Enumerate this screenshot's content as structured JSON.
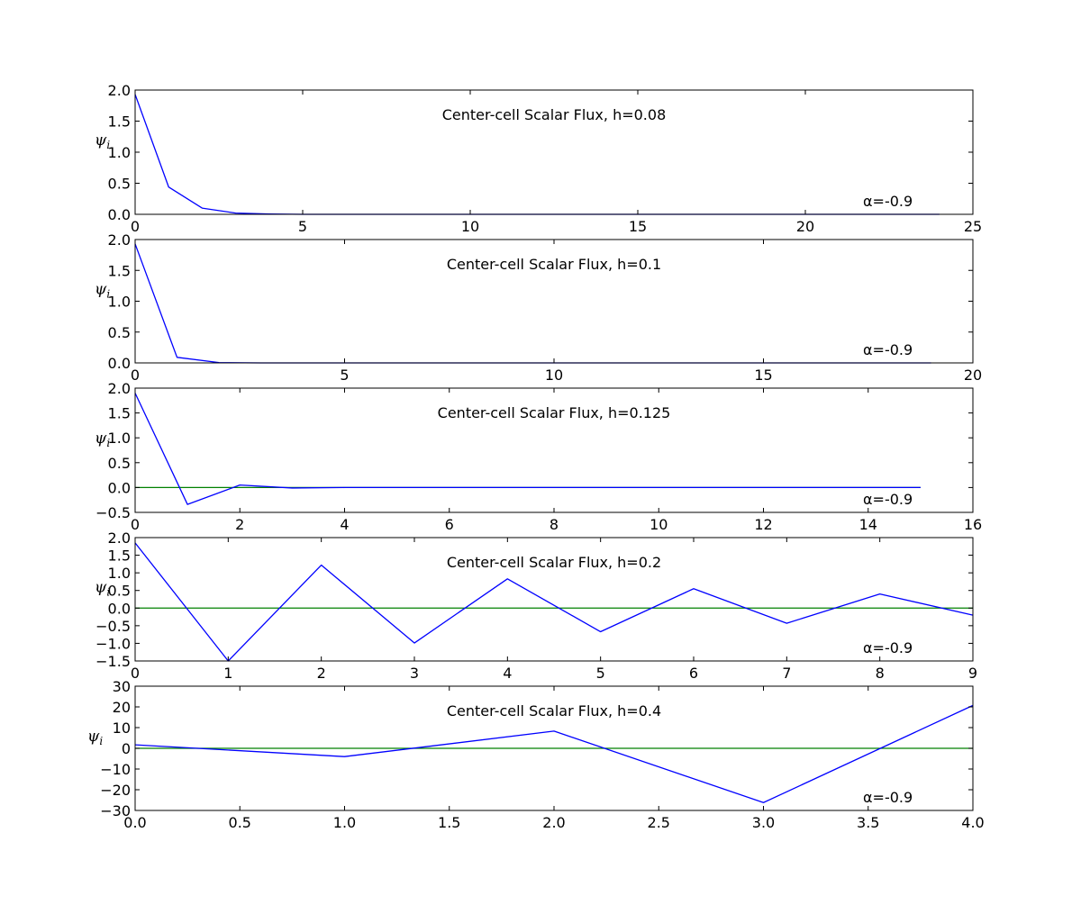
{
  "colors": {
    "series_line": "#0000ff",
    "zero_line": "#008000",
    "axes": "#000000",
    "background": "#ffffff"
  },
  "chart_data": [
    {
      "type": "line",
      "title": "Center-cell Scalar Flux, h=0.08",
      "ylabel": "ψi",
      "annotation": "α=-0.9",
      "xlim": [
        0,
        25
      ],
      "ylim": [
        0,
        2.0
      ],
      "xticks": [
        0,
        5,
        10,
        15,
        20,
        25
      ],
      "xtick_labels": [
        "0",
        "5",
        "10",
        "15",
        "20",
        "25"
      ],
      "yticks": [
        0,
        0.5,
        1.0,
        1.5,
        2.0
      ],
      "ytick_labels": [
        "0.0",
        "0.5",
        "1.0",
        "1.5",
        "2.0"
      ],
      "zero_line": false,
      "series": [
        {
          "x": [
            0,
            1,
            2,
            3,
            4,
            5,
            6,
            7,
            8,
            9,
            10,
            11,
            12,
            13,
            14,
            15,
            16,
            17,
            18,
            19,
            20,
            21,
            22,
            23,
            24
          ],
          "y": [
            1.93,
            0.44,
            0.1,
            0.02,
            0.005,
            0,
            0,
            0,
            0,
            0,
            0,
            0,
            0,
            0,
            0,
            0,
            0,
            0,
            0,
            0,
            0,
            0,
            0,
            0,
            0
          ]
        }
      ]
    },
    {
      "type": "line",
      "title": "Center-cell Scalar Flux, h=0.1",
      "ylabel": "ψi",
      "annotation": "α=-0.9",
      "xlim": [
        0,
        20
      ],
      "ylim": [
        0,
        2.0
      ],
      "xticks": [
        0,
        5,
        10,
        15,
        20
      ],
      "xtick_labels": [
        "0",
        "5",
        "10",
        "15",
        "20"
      ],
      "yticks": [
        0,
        0.5,
        1.0,
        1.5,
        2.0
      ],
      "ytick_labels": [
        "0.0",
        "0.5",
        "1.0",
        "1.5",
        "2.0"
      ],
      "zero_line": false,
      "series": [
        {
          "x": [
            0,
            1,
            2,
            3,
            4,
            5,
            6,
            7,
            8,
            9,
            10,
            11,
            12,
            13,
            14,
            15,
            16,
            17,
            18,
            19
          ],
          "y": [
            1.93,
            0.09,
            0.005,
            0,
            0,
            0,
            0,
            0,
            0,
            0,
            0,
            0,
            0,
            0,
            0,
            0,
            0,
            0,
            0,
            0
          ]
        }
      ]
    },
    {
      "type": "line",
      "title": "Center-cell Scalar Flux, h=0.125",
      "ylabel": "ψi",
      "annotation": "α=-0.9",
      "xlim": [
        0,
        16
      ],
      "ylim": [
        -0.5,
        2.0
      ],
      "xticks": [
        0,
        2,
        4,
        6,
        8,
        10,
        12,
        14,
        16
      ],
      "xtick_labels": [
        "0",
        "2",
        "4",
        "6",
        "8",
        "10",
        "12",
        "14",
        "16"
      ],
      "yticks": [
        -0.5,
        0,
        0.5,
        1.0,
        1.5,
        2.0
      ],
      "ytick_labels": [
        "−0.5",
        "0.0",
        "0.5",
        "1.0",
        "1.5",
        "2.0"
      ],
      "zero_line": true,
      "zero_line_xlim": [
        0,
        15
      ],
      "series": [
        {
          "x": [
            0,
            1,
            2,
            3,
            4,
            5,
            6,
            7,
            8,
            9,
            10,
            11,
            12,
            13,
            14,
            15
          ],
          "y": [
            1.9,
            -0.34,
            0.05,
            -0.01,
            0,
            0,
            0,
            0,
            0,
            0,
            0,
            0,
            0,
            0,
            0,
            0
          ]
        }
      ]
    },
    {
      "type": "line",
      "title": "Center-cell Scalar Flux, h=0.2",
      "ylabel": "ψi",
      "annotation": "α=-0.9",
      "xlim": [
        0,
        9
      ],
      "ylim": [
        -1.5,
        2.0
      ],
      "xticks": [
        0,
        1,
        2,
        3,
        4,
        5,
        6,
        7,
        8,
        9
      ],
      "xtick_labels": [
        "0",
        "1",
        "2",
        "3",
        "4",
        "5",
        "6",
        "7",
        "8",
        "9"
      ],
      "yticks": [
        -1.5,
        -1.0,
        -0.5,
        0,
        0.5,
        1.0,
        1.5,
        2.0
      ],
      "ytick_labels": [
        "−1.5",
        "−1.0",
        "−0.5",
        "0.0",
        "0.5",
        "1.0",
        "1.5",
        "2.0"
      ],
      "zero_line": true,
      "zero_line_xlim": [
        0,
        9
      ],
      "series": [
        {
          "x": [
            0,
            1,
            2,
            3,
            4,
            5,
            6,
            7,
            8,
            9
          ],
          "y": [
            1.85,
            -1.5,
            1.22,
            -0.99,
            0.83,
            -0.67,
            0.55,
            -0.43,
            0.4,
            -0.2
          ]
        }
      ]
    },
    {
      "type": "line",
      "title": "Center-cell Scalar Flux, h=0.4",
      "ylabel": "ψi",
      "annotation": "α=-0.9",
      "xlim": [
        0,
        4.0
      ],
      "ylim": [
        -30,
        30
      ],
      "xticks": [
        0,
        0.5,
        1.0,
        1.5,
        2.0,
        2.5,
        3.0,
        3.5,
        4.0
      ],
      "xtick_labels": [
        "0.0",
        "0.5",
        "1.0",
        "1.5",
        "2.0",
        "2.5",
        "3.0",
        "3.5",
        "4.0"
      ],
      "yticks": [
        -30,
        -20,
        -10,
        0,
        10,
        20,
        30
      ],
      "ytick_labels": [
        "−30",
        "−20",
        "−10",
        "0",
        "10",
        "20",
        "30"
      ],
      "zero_line": true,
      "zero_line_xlim": [
        0,
        4.0
      ],
      "series": [
        {
          "x": [
            0,
            1,
            2,
            3,
            4
          ],
          "y": [
            1.7,
            -4.0,
            8.3,
            -26.2,
            20.7
          ]
        }
      ]
    }
  ]
}
